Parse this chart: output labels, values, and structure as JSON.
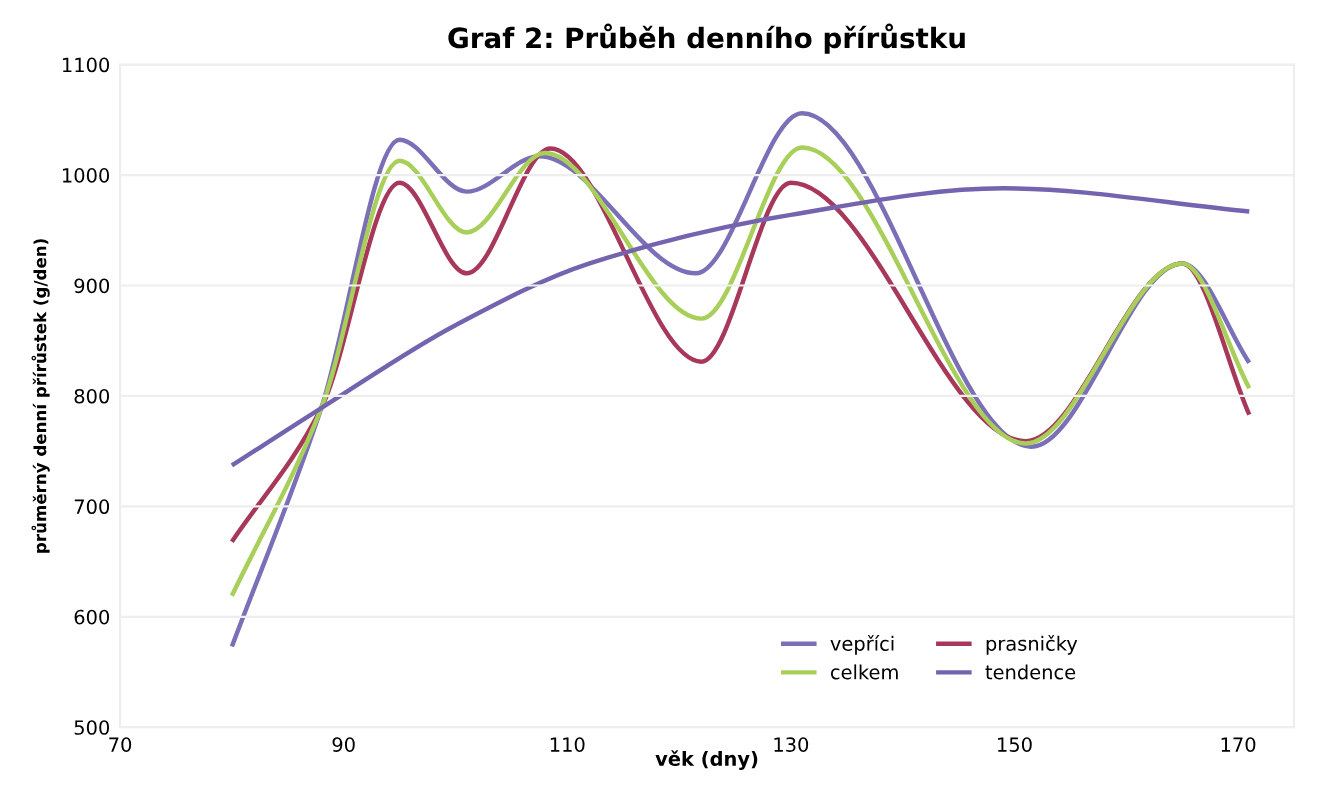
{
  "chart_data": {
    "type": "line",
    "title": "Graf 2: Průběh denního přírůstku",
    "xlabel": "věk (dny)",
    "ylabel": "průměrný denní přírůstek (g/den)",
    "xlim": [
      70,
      175
    ],
    "xticks": [
      70,
      90,
      110,
      130,
      150,
      170
    ],
    "ylim": [
      500,
      1100
    ],
    "yticks": [
      500,
      600,
      700,
      800,
      900,
      1000,
      1100
    ],
    "grid": "y",
    "legend": "bottom right",
    "marker": "none",
    "line_style": "solid",
    "series": [
      {
        "name": "vepříci",
        "color": "#7b6fb8",
        "x": [
          80,
          88,
          95,
          101,
          107.5,
          121.5,
          131,
          151.5,
          165,
          171
        ],
        "values": [
          573,
          789,
          1032,
          985,
          1017,
          911,
          1056,
          754,
          920,
          830
        ]
      },
      {
        "name": "prasničky",
        "color": "#a8385a",
        "x": [
          80,
          88,
          95,
          101,
          108.5,
          122,
          130,
          151,
          165,
          171
        ],
        "values": [
          668,
          789,
          993,
          911,
          1024,
          831,
          993,
          759,
          920,
          783
        ]
      },
      {
        "name": "celkem",
        "color": "#a8cf5a",
        "x": [
          80,
          88,
          95,
          101,
          108,
          122,
          131,
          151,
          165,
          171
        ],
        "values": [
          619,
          789,
          1013,
          948,
          1020,
          870,
          1025,
          757,
          920,
          807
        ]
      },
      {
        "name": "tendence",
        "color": "#7464b0",
        "x": [
          80,
          88,
          100,
          112,
          130,
          149,
          171
        ],
        "values": [
          737,
          789,
          864,
          920,
          964,
          988,
          967
        ]
      }
    ]
  }
}
